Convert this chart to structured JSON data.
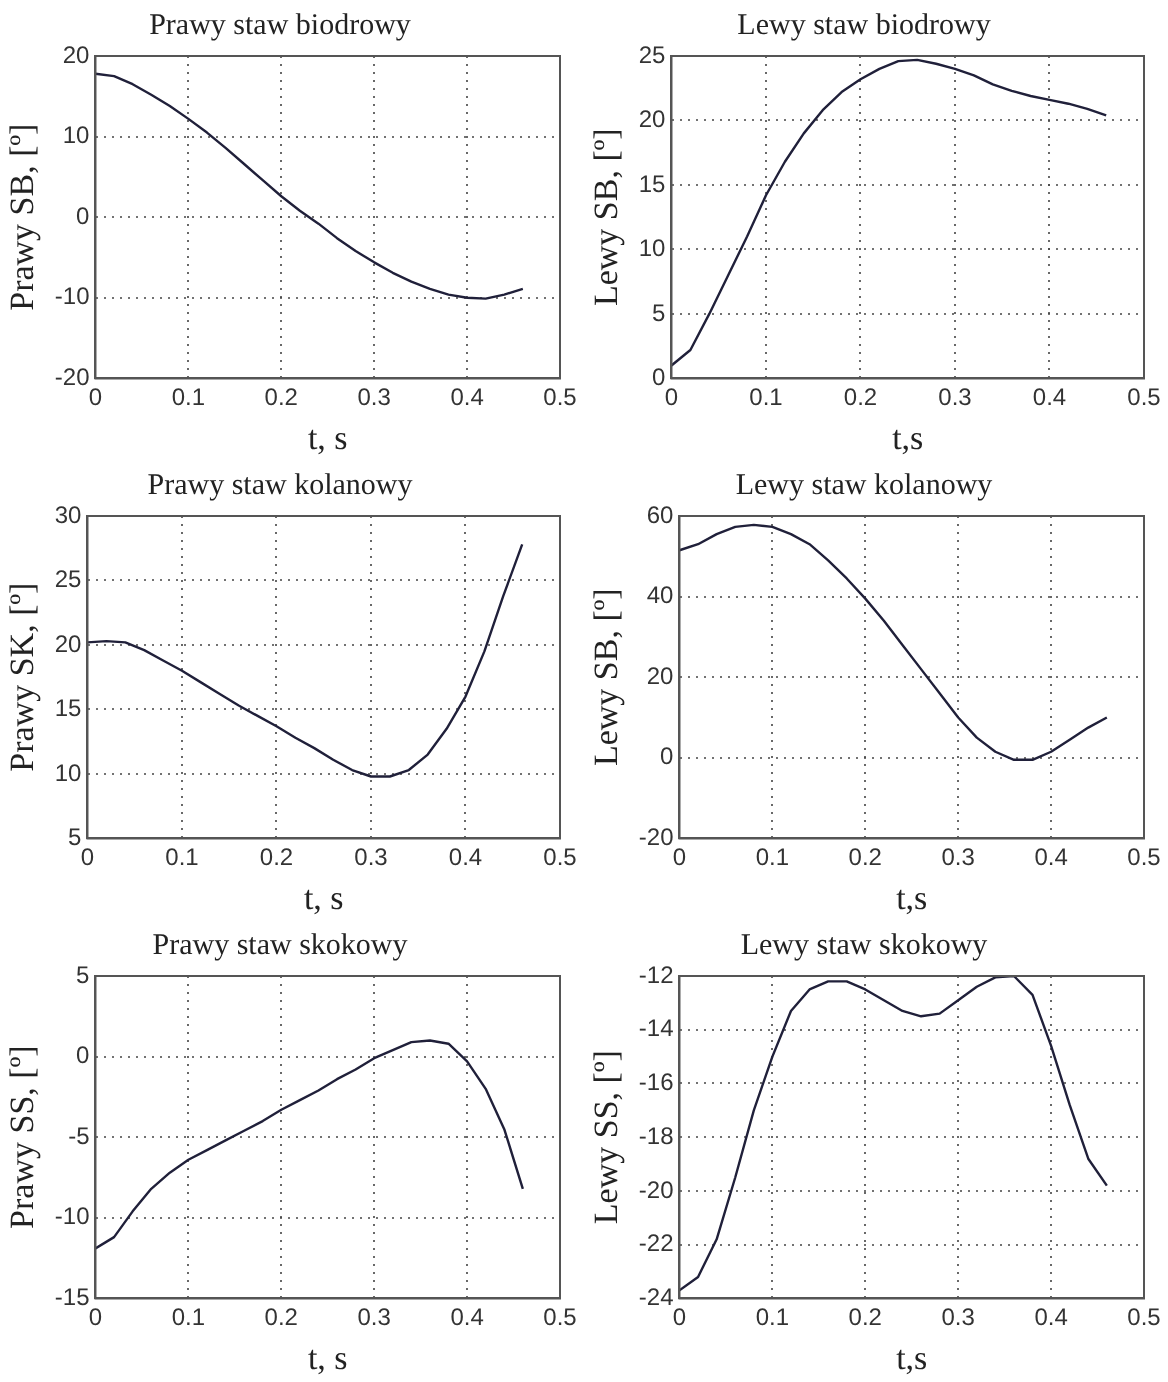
{
  "chart_data": [
    {
      "type": "line",
      "title": "Prawy staw biodrowy",
      "xlabel": "t, s",
      "ylabel": "Prawy SB, [º]",
      "color": "#20203a",
      "marker": "none",
      "grid": true,
      "x": [
        0,
        0.02,
        0.04,
        0.06,
        0.08,
        0.1,
        0.12,
        0.14,
        0.16,
        0.18,
        0.2,
        0.22,
        0.24,
        0.26,
        0.28,
        0.3,
        0.32,
        0.34,
        0.36,
        0.38,
        0.4,
        0.42,
        0.44,
        0.46
      ],
      "values": [
        17.8,
        17.5,
        16.5,
        15.2,
        13.8,
        12.2,
        10.5,
        8.6,
        6.6,
        4.6,
        2.6,
        0.8,
        -0.8,
        -2.6,
        -4.2,
        -5.6,
        -6.9,
        -8.0,
        -8.9,
        -9.6,
        -10.0,
        -10.1,
        -9.6,
        -8.9
      ],
      "xlim": [
        0,
        0.5
      ],
      "xticks": [
        0,
        0.1,
        0.2,
        0.3,
        0.4,
        0.5
      ],
      "ylim": [
        -20,
        20
      ],
      "yticks": [
        -20,
        -10,
        0,
        10,
        20
      ]
    },
    {
      "type": "line",
      "title": "Lewy staw biodrowy",
      "xlabel": "t,s",
      "ylabel": "Lewy SB, [º]",
      "color": "#20203a",
      "marker": "none",
      "grid": true,
      "x": [
        0,
        0.02,
        0.04,
        0.06,
        0.08,
        0.1,
        0.12,
        0.14,
        0.16,
        0.18,
        0.2,
        0.22,
        0.24,
        0.26,
        0.28,
        0.3,
        0.32,
        0.34,
        0.36,
        0.38,
        0.4,
        0.42,
        0.44,
        0.46
      ],
      "values": [
        1.0,
        2.2,
        5.0,
        8.0,
        11.0,
        14.2,
        16.8,
        19.0,
        20.8,
        22.2,
        23.2,
        24.0,
        24.6,
        24.7,
        24.4,
        24.0,
        23.5,
        22.8,
        22.3,
        21.9,
        21.6,
        21.3,
        20.9,
        20.4
      ],
      "xlim": [
        0,
        0.5
      ],
      "xticks": [
        0,
        0.1,
        0.2,
        0.3,
        0.4,
        0.5
      ],
      "ylim": [
        0,
        25
      ],
      "yticks": [
        0,
        5,
        10,
        15,
        20,
        25
      ]
    },
    {
      "type": "line",
      "title": "Prawy staw kolanowy",
      "xlabel": "t, s",
      "ylabel": "Prawy SK, [º]",
      "color": "#20203a",
      "marker": "none",
      "grid": true,
      "x": [
        0,
        0.02,
        0.04,
        0.06,
        0.08,
        0.1,
        0.12,
        0.14,
        0.16,
        0.18,
        0.2,
        0.22,
        0.24,
        0.26,
        0.28,
        0.3,
        0.32,
        0.34,
        0.36,
        0.38,
        0.4,
        0.42,
        0.44,
        0.46
      ],
      "values": [
        20.2,
        20.3,
        20.2,
        19.6,
        18.8,
        18.0,
        17.1,
        16.2,
        15.3,
        14.5,
        13.7,
        12.8,
        12.0,
        11.1,
        10.3,
        9.8,
        9.8,
        10.3,
        11.5,
        13.5,
        16.0,
        19.5,
        23.8,
        27.8
      ],
      "xlim": [
        0,
        0.5
      ],
      "xticks": [
        0,
        0.1,
        0.2,
        0.3,
        0.4,
        0.5
      ],
      "ylim": [
        5,
        30
      ],
      "yticks": [
        5,
        10,
        15,
        20,
        25,
        30
      ]
    },
    {
      "type": "line",
      "title": "Lewy staw kolanowy",
      "xlabel": "t,s",
      "ylabel": "Lewy SB, [º]",
      "color": "#20203a",
      "marker": "none",
      "grid": true,
      "x": [
        0,
        0.02,
        0.04,
        0.06,
        0.08,
        0.1,
        0.12,
        0.14,
        0.16,
        0.18,
        0.2,
        0.22,
        0.24,
        0.26,
        0.28,
        0.3,
        0.32,
        0.34,
        0.36,
        0.38,
        0.4,
        0.42,
        0.44,
        0.46
      ],
      "values": [
        51.5,
        53,
        55.5,
        57.3,
        57.8,
        57.3,
        55.5,
        53,
        49,
        44.5,
        39.5,
        34,
        28,
        22,
        16,
        10,
        5,
        1.5,
        -0.5,
        -0.5,
        1.5,
        4.5,
        7.5,
        10
      ],
      "xlim": [
        0,
        0.5
      ],
      "xticks": [
        0,
        0.1,
        0.2,
        0.3,
        0.4,
        0.5
      ],
      "ylim": [
        -20,
        60
      ],
      "yticks": [
        -20,
        0,
        20,
        40,
        60
      ]
    },
    {
      "type": "line",
      "title": "Prawy staw skokowy",
      "xlabel": "t, s",
      "ylabel": "Prawy SS, [º]",
      "color": "#20203a",
      "marker": "none",
      "grid": true,
      "x": [
        0,
        0.02,
        0.04,
        0.06,
        0.08,
        0.1,
        0.12,
        0.14,
        0.16,
        0.18,
        0.2,
        0.22,
        0.24,
        0.26,
        0.28,
        0.3,
        0.32,
        0.34,
        0.36,
        0.38,
        0.4,
        0.42,
        0.44,
        0.46
      ],
      "values": [
        -11.9,
        -11.2,
        -9.6,
        -8.2,
        -7.2,
        -6.4,
        -5.8,
        -5.2,
        -4.6,
        -4.0,
        -3.3,
        -2.7,
        -2.1,
        -1.4,
        -0.8,
        -0.1,
        0.4,
        0.9,
        1.0,
        0.8,
        -0.3,
        -2.0,
        -4.5,
        -8.2
      ],
      "xlim": [
        0,
        0.5
      ],
      "xticks": [
        0,
        0.1,
        0.2,
        0.3,
        0.4,
        0.5
      ],
      "ylim": [
        -15,
        5
      ],
      "yticks": [
        -15,
        -10,
        -5,
        0,
        5
      ]
    },
    {
      "type": "line",
      "title": "Lewy staw skokowy",
      "xlabel": "t,s",
      "ylabel": "Lewy SS, [º]",
      "color": "#20203a",
      "marker": "none",
      "grid": true,
      "x": [
        0,
        0.02,
        0.04,
        0.06,
        0.08,
        0.1,
        0.12,
        0.14,
        0.16,
        0.18,
        0.2,
        0.22,
        0.24,
        0.26,
        0.28,
        0.3,
        0.32,
        0.34,
        0.36,
        0.38,
        0.4,
        0.42,
        0.44,
        0.46
      ],
      "values": [
        -23.7,
        -23.2,
        -21.8,
        -19.5,
        -17.0,
        -15.0,
        -13.3,
        -12.5,
        -12.2,
        -12.2,
        -12.5,
        -12.9,
        -13.3,
        -13.5,
        -13.4,
        -12.9,
        -12.4,
        -12.05,
        -12.0,
        -12.7,
        -14.6,
        -16.8,
        -18.8,
        -19.8
      ],
      "xlim": [
        0,
        0.5
      ],
      "xticks": [
        0,
        0.1,
        0.2,
        0.3,
        0.4,
        0.5
      ],
      "ylim": [
        -24,
        -12
      ],
      "yticks": [
        -24,
        -22,
        -20,
        -18,
        -16,
        -14,
        -12
      ]
    }
  ]
}
